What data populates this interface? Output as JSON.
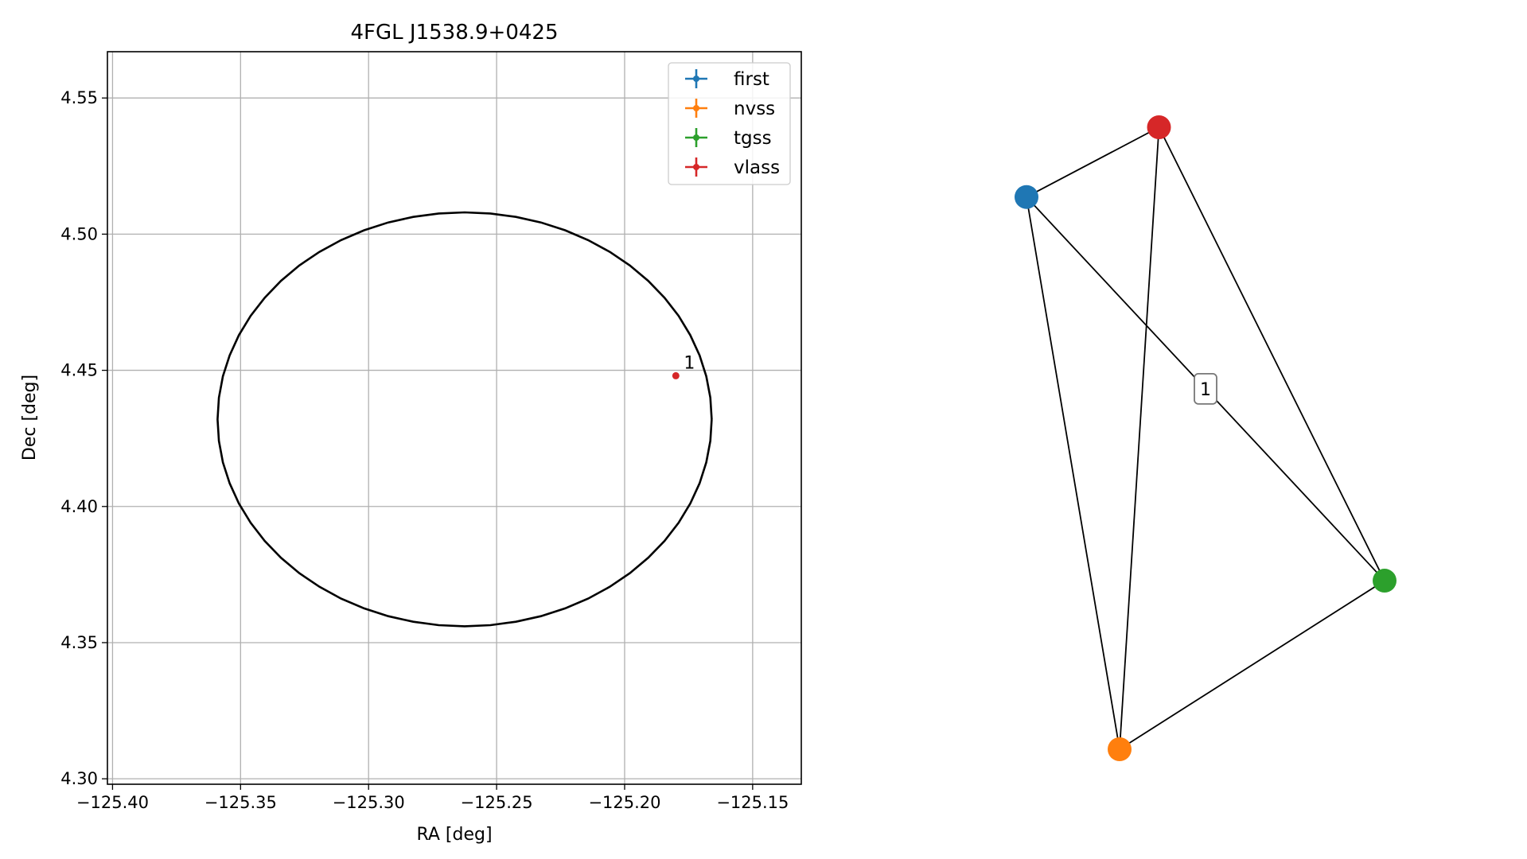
{
  "chart_data": [
    {
      "type": "scatter",
      "title": "4FGL J1538.9+0425",
      "xlabel": "RA [deg]",
      "ylabel": "Dec [deg]",
      "xlim": [
        -125.402,
        -125.131
      ],
      "ylim": [
        4.298,
        4.567
      ],
      "xticks": [
        -125.4,
        -125.35,
        -125.3,
        -125.25,
        -125.2,
        -125.15
      ],
      "xtick_labels": [
        "−125.40",
        "−125.35",
        "−125.30",
        "−125.25",
        "−125.20",
        "−125.15"
      ],
      "yticks": [
        4.3,
        4.35,
        4.4,
        4.45,
        4.5,
        4.55
      ],
      "ytick_labels": [
        "4.30",
        "4.35",
        "4.40",
        "4.45",
        "4.50",
        "4.55"
      ],
      "grid": true,
      "legend_position": "top-right",
      "series": [
        {
          "name": "first",
          "color": "#1f77b4",
          "points": []
        },
        {
          "name": "nvss",
          "color": "#ff7f0e",
          "points": []
        },
        {
          "name": "tgss",
          "color": "#2ca02c",
          "points": []
        },
        {
          "name": "vlass",
          "color": "#d62728",
          "points": [
            {
              "x": -125.18,
              "y": 4.448
            }
          ]
        }
      ],
      "ellipse": {
        "center": [
          -125.2625,
          4.432
        ],
        "rx": 0.0965,
        "ry": 0.076,
        "color": "#000000"
      },
      "annotations": [
        {
          "text": "1",
          "x": -125.18,
          "y": 4.448
        }
      ]
    },
    {
      "type": "network",
      "nodes": [
        {
          "id": "first",
          "color": "#1f77b4",
          "x": 0.0,
          "y": 0.8
        },
        {
          "id": "vlass",
          "color": "#d62728",
          "x": 0.37,
          "y": 0.92
        },
        {
          "id": "tgss",
          "color": "#2ca02c",
          "x": 1.0,
          "y": 0.14
        },
        {
          "id": "nvss",
          "color": "#ff7f0e",
          "x": 0.26,
          "y": -0.15
        }
      ],
      "edges": [
        [
          "first",
          "vlass"
        ],
        [
          "first",
          "nvss"
        ],
        [
          "first",
          "tgss"
        ],
        [
          "vlass",
          "nvss"
        ],
        [
          "vlass",
          "tgss"
        ],
        [
          "nvss",
          "tgss"
        ]
      ],
      "edge_labels": [
        {
          "edge": [
            "first",
            "tgss"
          ],
          "text": "1"
        }
      ]
    }
  ]
}
